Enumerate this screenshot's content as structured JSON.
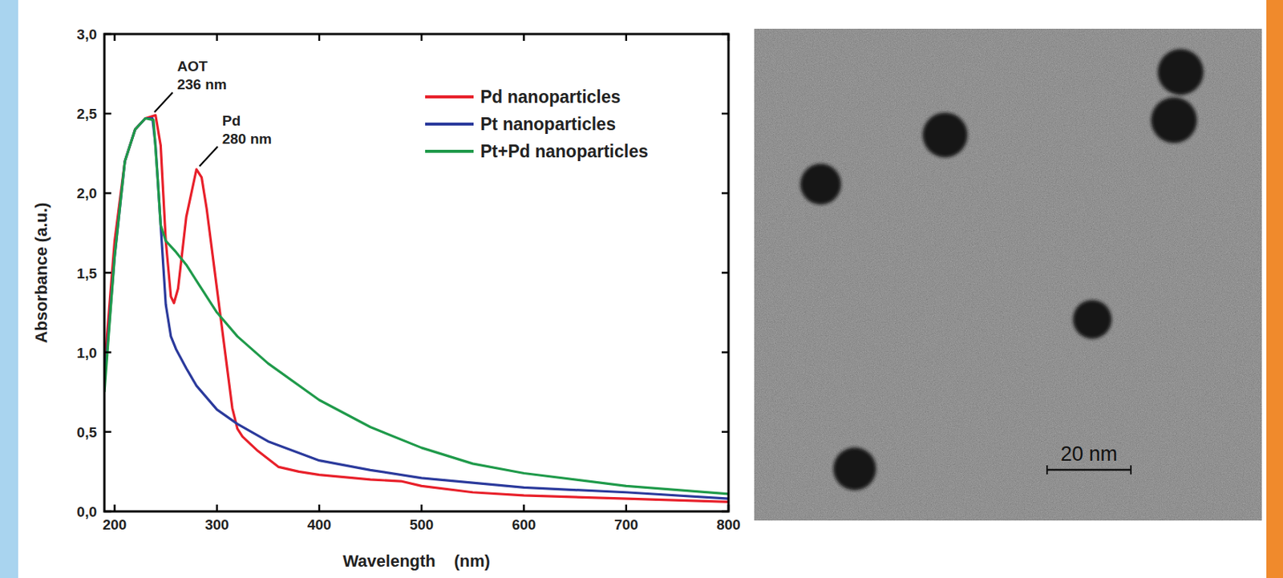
{
  "chart_data": {
    "type": "line",
    "x_label": "Wavelength    (nm)",
    "y_label": "Absorbance (a.u.)",
    "xlim": [
      190,
      800
    ],
    "ylim": [
      0,
      3
    ],
    "xticks": [
      200,
      300,
      400,
      500,
      600,
      700,
      800
    ],
    "yticks": [
      {
        "value": 0,
        "label": "0,0"
      },
      {
        "value": 0.5,
        "label": "0,5"
      },
      {
        "value": 1,
        "label": "1,0"
      },
      {
        "value": 1.5,
        "label": "1,5"
      },
      {
        "value": 2,
        "label": "2,0"
      },
      {
        "value": 2.5,
        "label": "2,5"
      },
      {
        "value": 3,
        "label": "3,0"
      }
    ],
    "grid": false,
    "legend": "upper right",
    "annotations": [
      {
        "lines": [
          "AOT",
          "236 nm"
        ],
        "x": 236,
        "y": 2.49
      },
      {
        "lines": [
          "Pd",
          "280 nm"
        ],
        "x": 280,
        "y": 2.15
      }
    ],
    "series": [
      {
        "name": "Pd nanoparticles",
        "color": "#e8202a",
        "x": [
          190,
          200,
          210,
          220,
          230,
          240,
          245,
          250,
          255,
          258,
          262,
          270,
          280,
          285,
          290,
          300,
          310,
          315,
          320,
          325,
          340,
          360,
          380,
          400,
          450,
          480,
          500,
          550,
          600,
          700,
          800
        ],
        "values": [
          0.9,
          1.7,
          2.2,
          2.4,
          2.47,
          2.49,
          2.3,
          1.7,
          1.35,
          1.31,
          1.4,
          1.85,
          2.15,
          2.1,
          1.9,
          1.4,
          0.9,
          0.65,
          0.52,
          0.47,
          0.38,
          0.28,
          0.25,
          0.23,
          0.2,
          0.19,
          0.16,
          0.12,
          0.1,
          0.08,
          0.06
        ]
      },
      {
        "name": "Pt nanoparticles",
        "color": "#2b3a9c",
        "x": [
          190,
          200,
          210,
          220,
          230,
          237,
          240,
          245,
          250,
          255,
          260,
          270,
          280,
          300,
          320,
          350,
          400,
          450,
          500,
          600,
          700,
          800
        ],
        "values": [
          0.8,
          1.6,
          2.2,
          2.4,
          2.47,
          2.47,
          2.3,
          1.8,
          1.3,
          1.1,
          1.02,
          0.9,
          0.79,
          0.64,
          0.55,
          0.44,
          0.32,
          0.26,
          0.21,
          0.15,
          0.12,
          0.08
        ]
      },
      {
        "name": "Pt+Pd nanoparticles",
        "color": "#1f9a4a",
        "x": [
          190,
          200,
          210,
          220,
          230,
          238,
          242,
          245,
          250,
          260,
          270,
          280,
          290,
          300,
          320,
          350,
          400,
          450,
          500,
          550,
          600,
          700,
          800
        ],
        "values": [
          0.75,
          1.6,
          2.2,
          2.4,
          2.47,
          2.46,
          2.1,
          1.8,
          1.7,
          1.63,
          1.55,
          1.45,
          1.35,
          1.25,
          1.1,
          0.93,
          0.7,
          0.53,
          0.4,
          0.3,
          0.24,
          0.16,
          0.11
        ]
      }
    ]
  },
  "micrograph": {
    "scale_bar": "20 nm"
  }
}
